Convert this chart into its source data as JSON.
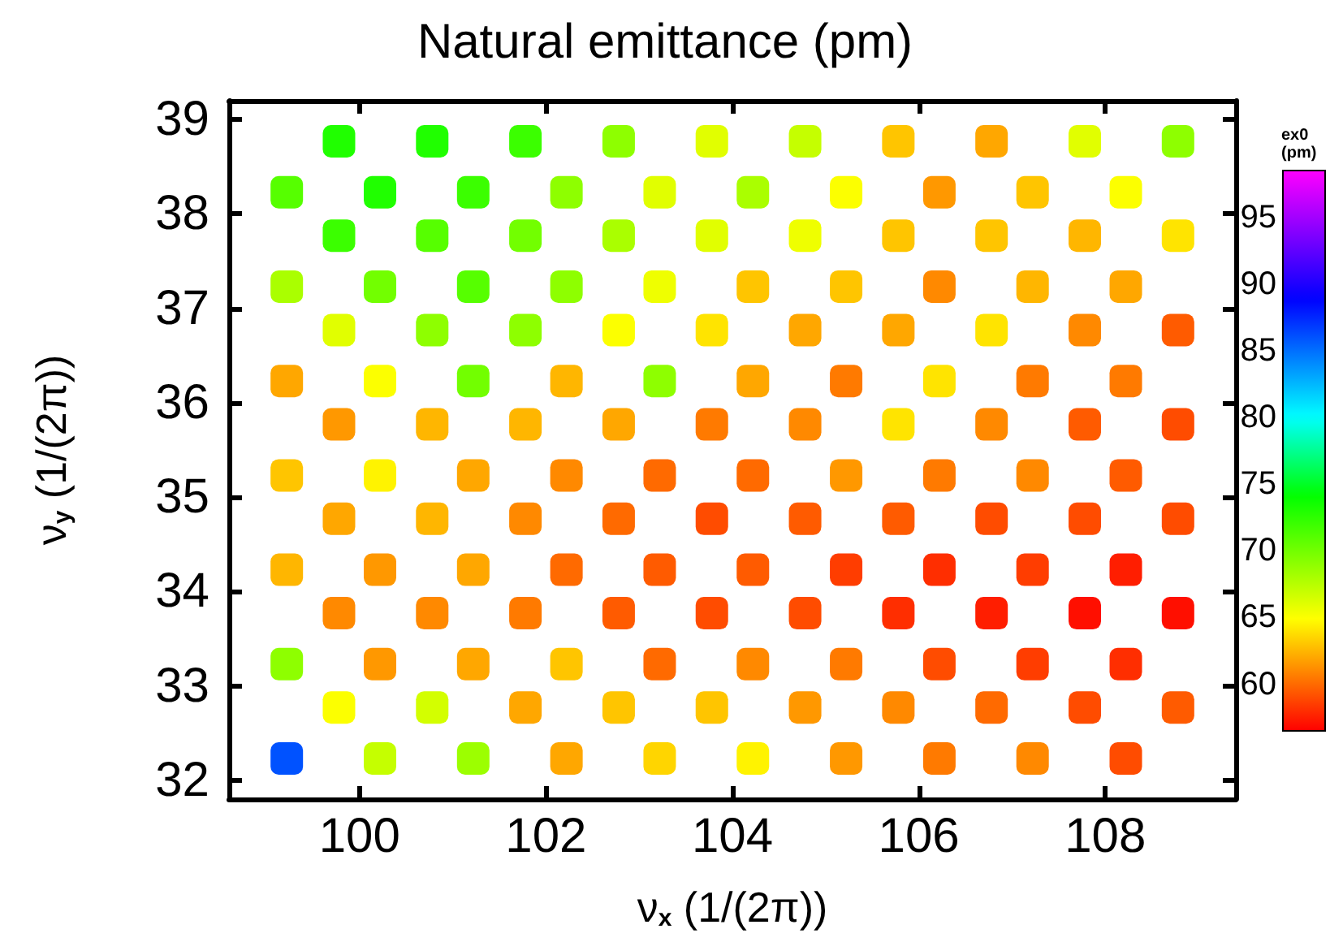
{
  "chart_data": {
    "type": "scatter",
    "title": "Natural emittance (pm)",
    "xlabel": "ν$_{x}$ (1/(2π))",
    "ylabel": "ν$_{y}$ (1/(2π))",
    "clabel": "ex0\n(pm)",
    "marker": "square",
    "xlim": [
      98.6,
      109.4
    ],
    "xticks": [
      100,
      102,
      104,
      106,
      108
    ],
    "ylim": [
      31.8,
      39.2
    ],
    "yticks": [
      32,
      33,
      34,
      35,
      36,
      37,
      38,
      39
    ],
    "clim": [
      56.5,
      98.5
    ],
    "cticks": [
      60,
      65,
      70,
      75,
      80,
      85,
      90,
      95
    ],
    "x": [
      99.78,
      100.78,
      101.78,
      102.78,
      103.78,
      104.78,
      105.78,
      106.78,
      107.78,
      108.78,
      99.22,
      100.22,
      101.22,
      102.22,
      103.22,
      104.22,
      105.22,
      106.22,
      107.22,
      108.22,
      99.78,
      100.78,
      101.78,
      102.78,
      103.78,
      104.78,
      105.78,
      106.78,
      107.78,
      108.78,
      99.22,
      100.22,
      101.22,
      102.22,
      103.22,
      104.22,
      105.22,
      106.22,
      107.22,
      108.22,
      99.78,
      100.78,
      101.78,
      102.78,
      103.78,
      104.78,
      105.78,
      106.78,
      107.78,
      108.78,
      99.22,
      100.22,
      101.22,
      102.22,
      103.22,
      104.22,
      105.22,
      106.22,
      107.22,
      108.22,
      99.78,
      100.78,
      101.78,
      102.78,
      103.78,
      104.78,
      105.78,
      106.78,
      107.78,
      108.78,
      99.22,
      100.22,
      101.22,
      102.22,
      103.22,
      104.22,
      105.22,
      106.22,
      107.22,
      108.22,
      99.78,
      100.78,
      101.78,
      102.78,
      103.78,
      104.78,
      105.78,
      106.78,
      107.78,
      108.78,
      99.22,
      100.22,
      101.22,
      102.22,
      103.22,
      104.22,
      105.22,
      106.22,
      107.22,
      108.22,
      99.78,
      100.78,
      101.78,
      102.78,
      103.78,
      104.78,
      105.78,
      106.78,
      107.78,
      108.78,
      99.22,
      100.22,
      101.22,
      102.22,
      103.22,
      104.22,
      105.22,
      106.22,
      107.22,
      108.22,
      99.78,
      100.78,
      101.78,
      102.78,
      103.78,
      104.78,
      105.78,
      106.78,
      107.78,
      108.78,
      99.22,
      100.22,
      101.22,
      102.22,
      103.22,
      104.22,
      105.22,
      106.22,
      107.22,
      108.22
    ],
    "values": [
      38.77,
      38.77,
      38.77,
      38.77,
      38.77,
      38.77,
      38.77,
      38.77,
      38.77,
      38.77,
      38.23,
      38.23,
      38.23,
      38.23,
      38.23,
      38.23,
      38.23,
      38.23,
      38.23,
      38.23,
      37.77,
      37.77,
      37.77,
      37.77,
      37.77,
      37.77,
      37.77,
      37.77,
      37.77,
      37.77,
      37.23,
      37.23,
      37.23,
      37.23,
      37.23,
      37.23,
      37.23,
      37.23,
      37.23,
      37.23,
      36.77,
      36.77,
      36.77,
      36.77,
      36.77,
      36.77,
      36.77,
      36.77,
      36.77,
      36.77,
      36.23,
      36.23,
      36.23,
      36.23,
      36.23,
      36.23,
      36.23,
      36.23,
      36.23,
      36.23,
      35.77,
      35.77,
      35.77,
      35.77,
      35.77,
      35.77,
      35.77,
      35.77,
      35.77,
      35.77,
      35.23,
      35.23,
      35.23,
      35.23,
      35.23,
      35.23,
      35.23,
      35.23,
      35.23,
      35.23,
      34.77,
      34.77,
      34.77,
      34.77,
      34.77,
      34.77,
      34.77,
      34.77,
      34.77,
      34.77,
      34.23,
      34.23,
      34.23,
      34.23,
      34.23,
      34.23,
      34.23,
      34.23,
      34.23,
      34.23,
      33.77,
      33.77,
      33.77,
      33.77,
      33.77,
      33.77,
      33.77,
      33.77,
      33.77,
      33.77,
      33.23,
      33.23,
      33.23,
      33.23,
      33.23,
      33.23,
      33.23,
      33.23,
      33.23,
      33.23,
      32.77,
      32.77,
      32.77,
      32.77,
      32.77,
      32.77,
      32.77,
      32.77,
      32.77,
      32.77,
      32.23,
      32.23,
      32.23,
      32.23,
      32.23,
      32.23,
      32.23,
      32.23,
      32.23,
      32.23
    ],
    "cvalues": [
      73,
      73,
      72,
      69,
      66,
      67,
      63,
      62,
      66,
      69,
      71,
      73,
      72,
      69,
      66,
      68,
      65,
      61.5,
      63,
      65,
      72,
      71,
      70,
      68,
      66,
      65.5,
      63,
      63,
      62.5,
      64,
      68,
      70,
      71,
      69,
      65.5,
      63,
      63,
      61,
      62.5,
      62,
      66,
      69,
      69,
      65,
      64,
      62,
      62,
      64,
      61,
      59.5,
      62,
      65,
      70,
      62.5,
      69,
      62,
      60.5,
      64,
      60.5,
      60.5,
      61.5,
      62.5,
      62.5,
      62,
      60.5,
      61,
      64,
      61,
      59.5,
      59,
      63,
      64.5,
      62,
      61,
      60,
      60,
      61.5,
      60.5,
      61,
      59.5,
      62,
      62.5,
      61,
      60,
      59,
      59.5,
      59.5,
      59,
      59,
      59,
      62.5,
      61.5,
      62,
      60,
      59.5,
      59.5,
      58.5,
      58,
      58.5,
      57.5,
      61,
      61,
      60.5,
      59.5,
      59,
      59,
      58,
      57.5,
      57,
      57,
      69,
      61.5,
      62,
      63,
      60,
      61,
      60.5,
      59,
      58.5,
      58,
      65,
      66.5,
      62,
      63,
      63,
      61.5,
      61,
      60,
      59,
      59.5,
      86,
      67,
      68.5,
      62,
      63.5,
      64.5,
      61.5,
      60.5,
      61,
      59
    ]
  }
}
